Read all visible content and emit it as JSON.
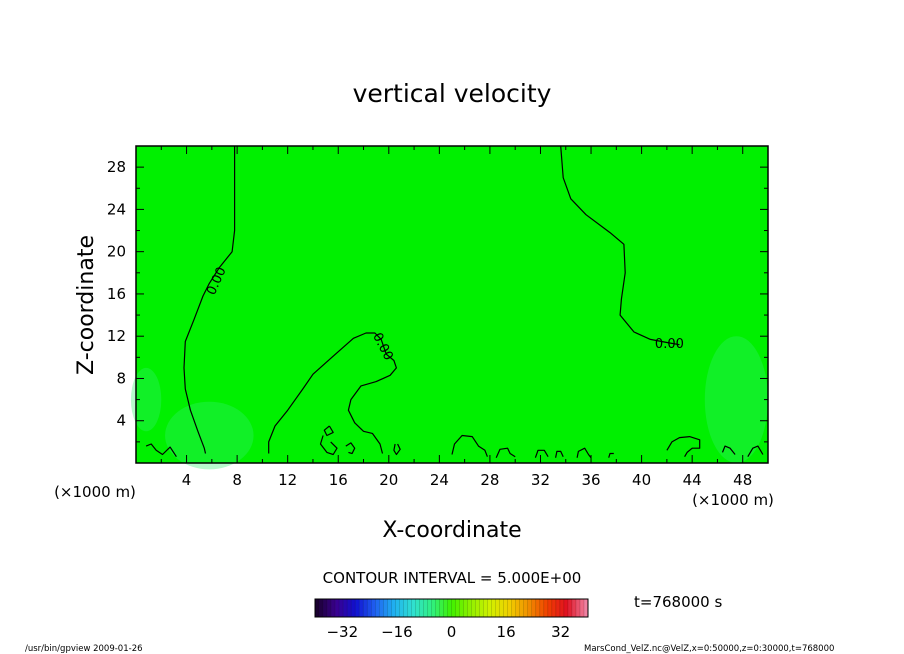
{
  "chart_data": {
    "type": "heatmap",
    "title": "vertical velocity",
    "xlabel": "X-coordinate",
    "ylabel": "Z-coordinate",
    "x_unit_left": "(×1000 m)",
    "x_unit_right": "(×1000 m)",
    "x_ticks": [
      4,
      8,
      12,
      16,
      20,
      24,
      28,
      32,
      36,
      40,
      44,
      48
    ],
    "y_ticks": [
      4,
      8,
      12,
      16,
      20,
      24,
      28
    ],
    "xlim": [
      0,
      50
    ],
    "ylim": [
      0,
      30
    ],
    "field_color": "#00f000",
    "contour_label": "0.00",
    "contour_interval_text": "CONTOUR INTERVAL = 5.000E+00",
    "time_text": "t=768000 s",
    "colorbar_ticks": [
      -32,
      -16,
      0,
      16,
      32
    ],
    "colorbar_range": [
      -40,
      40
    ],
    "colorbar_colors": [
      "#1a0030",
      "#3a0090",
      "#1010d0",
      "#2060f0",
      "#20b0f0",
      "#30e0d0",
      "#30f080",
      "#40f000",
      "#90f000",
      "#d0f000",
      "#f0d000",
      "#f09000",
      "#f04000",
      "#e01020",
      "#f080a0"
    ],
    "contours": [
      [
        [
          7.8,
          30
        ],
        [
          7.8,
          26
        ],
        [
          7.8,
          22
        ],
        [
          7.6,
          20
        ],
        [
          6.6,
          18.5
        ],
        [
          5.8,
          17
        ],
        [
          5.3,
          15.8
        ],
        [
          4.6,
          13.6
        ],
        [
          3.9,
          11.5
        ],
        [
          3.8,
          9
        ],
        [
          3.9,
          7
        ],
        [
          4.3,
          5
        ],
        [
          4.9,
          3
        ],
        [
          5.4,
          1.4
        ],
        [
          5.5,
          0.9
        ]
      ],
      [
        [
          33.6,
          30
        ],
        [
          33.8,
          27
        ],
        [
          34.4,
          25
        ],
        [
          35.6,
          23.5
        ],
        [
          37.5,
          21.8
        ],
        [
          38.6,
          20.7
        ],
        [
          38.7,
          18
        ],
        [
          38.4,
          15.5
        ],
        [
          38.3,
          14
        ],
        [
          39.4,
          12.4
        ],
        [
          40.7,
          11.7
        ],
        [
          42,
          11.4
        ],
        [
          43,
          11.2
        ]
      ],
      [
        [
          10.5,
          0.9
        ],
        [
          10.5,
          2
        ],
        [
          11,
          3.5
        ],
        [
          12,
          5
        ],
        [
          13.2,
          7
        ],
        [
          14,
          8.4
        ],
        [
          15.5,
          10
        ],
        [
          17.2,
          11.8
        ],
        [
          18.2,
          12.3
        ],
        [
          18.9,
          12.3
        ],
        [
          19.4,
          11.7
        ],
        [
          19.6,
          11
        ],
        [
          19.8,
          10.3
        ],
        [
          20.4,
          9.7
        ],
        [
          20.6,
          9
        ],
        [
          20.1,
          8.3
        ],
        [
          19,
          7.7
        ],
        [
          17.8,
          7.3
        ],
        [
          17,
          6
        ],
        [
          16.8,
          5
        ],
        [
          17.3,
          3.8
        ],
        [
          18,
          3
        ],
        [
          18.7,
          2.8
        ],
        [
          19.3,
          1.8
        ],
        [
          19.5,
          0.9
        ]
      ],
      [
        [
          0.8,
          1.6
        ],
        [
          1.2,
          1.8
        ],
        [
          1.6,
          1.2
        ],
        [
          2.1,
          0.8
        ],
        [
          2.7,
          1.5
        ],
        [
          3.2,
          0.6
        ]
      ],
      [
        [
          15.3,
          3.5
        ],
        [
          15.6,
          2.9
        ],
        [
          15.1,
          2.6
        ],
        [
          14.9,
          3.1
        ],
        [
          15.3,
          3.5
        ]
      ],
      [
        [
          14.8,
          2.6
        ],
        [
          14.6,
          1.8
        ],
        [
          15.1,
          1.0
        ],
        [
          15.6,
          0.8
        ],
        [
          15.9,
          1.4
        ],
        [
          15.4,
          2.0
        ]
      ],
      [
        [
          16.6,
          1.6
        ],
        [
          17.0,
          1.9
        ],
        [
          17.3,
          1.4
        ],
        [
          17.1,
          0.9
        ],
        [
          16.8,
          1.0
        ]
      ],
      [
        [
          20.5,
          1.8
        ],
        [
          20.4,
          1.2
        ],
        [
          20.6,
          0.8
        ],
        [
          20.9,
          1.3
        ],
        [
          20.7,
          1.8
        ]
      ],
      [
        [
          25.0,
          0.8
        ],
        [
          25.2,
          1.8
        ],
        [
          25.8,
          2.6
        ],
        [
          26.6,
          2.5
        ],
        [
          27.1,
          1.6
        ],
        [
          27.6,
          1.2
        ],
        [
          27.8,
          0.6
        ]
      ],
      [
        [
          28.5,
          0.5
        ],
        [
          28.8,
          1.3
        ],
        [
          29.4,
          1.4
        ],
        [
          29.6,
          0.9
        ],
        [
          30.0,
          0.6
        ]
      ],
      [
        [
          31.6,
          0.5
        ],
        [
          31.8,
          1.2
        ],
        [
          32.3,
          1.2
        ],
        [
          32.6,
          0.6
        ]
      ],
      [
        [
          33.2,
          0.5
        ],
        [
          33.3,
          1.1
        ],
        [
          33.6,
          1.1
        ],
        [
          33.8,
          0.6
        ]
      ],
      [
        [
          34.9,
          0.5
        ],
        [
          35.0,
          1.1
        ],
        [
          35.5,
          1.4
        ],
        [
          35.8,
          0.8
        ],
        [
          36.0,
          0.5
        ]
      ],
      [
        [
          37.4,
          0.5
        ],
        [
          37.5,
          0.9
        ],
        [
          37.8,
          0.9
        ]
      ],
      [
        [
          42.0,
          1.2
        ],
        [
          42.4,
          2.0
        ],
        [
          43.0,
          2.4
        ],
        [
          43.8,
          2.5
        ],
        [
          44.6,
          2.2
        ],
        [
          44.6,
          1.4
        ],
        [
          44.0,
          1.4
        ],
        [
          43.6,
          1.0
        ],
        [
          43.4,
          0.6
        ]
      ],
      [
        [
          46.4,
          1.0
        ],
        [
          46.6,
          1.6
        ],
        [
          47.0,
          1.4
        ],
        [
          47.4,
          0.8
        ]
      ],
      [
        [
          48.4,
          0.6
        ],
        [
          48.8,
          1.4
        ],
        [
          49.2,
          1.6
        ],
        [
          49.6,
          0.8
        ]
      ]
    ],
    "contour_labels": [
      {
        "x": 6.4,
        "y": 17.2,
        "angle": -66
      },
      {
        "x": 19.5,
        "y": 11.0,
        "angle": 63
      },
      {
        "x": 42.2,
        "y": 11.2,
        "angle": 0
      }
    ]
  },
  "footer": {
    "left": "/usr/bin/gpview  2009-01-26",
    "right": "MarsCond_VelZ.nc@VelZ,x=0:50000,z=0:30000,t=768000"
  }
}
